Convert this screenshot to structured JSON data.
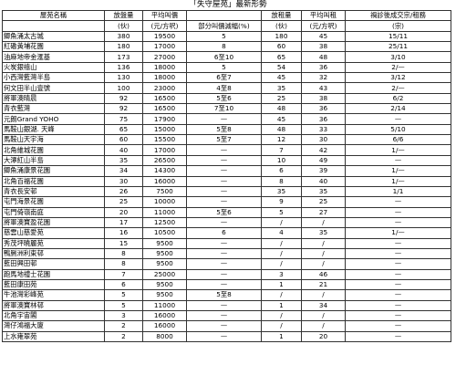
{
  "title": "「失守屋苑」最新形勢",
  "headers": {
    "name": [
      "屋苑名稱",
      ""
    ],
    "units": [
      "放盤量",
      "(伙)"
    ],
    "avg_price": [
      "平均叫價",
      "(元/方呎)"
    ],
    "cut": [
      "",
      "部分叫價減幅(%)"
    ],
    "rent_units": [
      "放租量",
      "(伙)"
    ],
    "avg_rent": [
      "平均叫租",
      "(元/方呎)"
    ],
    "ratio": [
      "禍診後成交宗/租務",
      "(宗)"
    ]
  },
  "rows": [
    {
      "name": "鯽魚涌太古城",
      "units": "380",
      "avg_price": "19500",
      "cut": "5",
      "rent_units": "180",
      "avg_rent": "45",
      "ratio": "15/11"
    },
    {
      "name": "紅磡黃埔花園",
      "units": "180",
      "avg_price": "17000",
      "cut": "8",
      "rent_units": "60",
      "avg_rent": "38",
      "ratio": "25/11"
    },
    {
      "name": "油麻地帝金滙基",
      "units": "173",
      "avg_price": "27000",
      "cut": "6至10",
      "rent_units": "65",
      "avg_rent": "48",
      "ratio": "3/10"
    },
    {
      "name": "火炭銀禧山",
      "units": "136",
      "avg_price": "18000",
      "cut": "5",
      "rent_units": "54",
      "avg_rent": "36",
      "ratio": "2/—"
    },
    {
      "name": "小西灣藍灣半島",
      "units": "130",
      "avg_price": "18000",
      "cut": "6至7",
      "rent_units": "45",
      "avg_rent": "32",
      "ratio": "3/12"
    },
    {
      "name": "何文田半山壹號",
      "units": "100",
      "avg_price": "23000",
      "cut": "4至8",
      "rent_units": "35",
      "avg_rent": "43",
      "ratio": "2/—"
    },
    {
      "name": "將軍澳晴晨",
      "units": "92",
      "avg_price": "16500",
      "cut": "5至6",
      "rent_units": "25",
      "avg_rent": "38",
      "ratio": "6/2"
    },
    {
      "name": "青衣藍灣",
      "units": "92",
      "avg_price": "16500",
      "cut": "7至10",
      "rent_units": "48",
      "avg_rent": "36",
      "ratio": "2/14"
    },
    {
      "name": "元朗Grand YOHO",
      "units": "75",
      "avg_price": "17900",
      "cut": "—",
      "rent_units": "45",
      "avg_rent": "36",
      "ratio": "—"
    },
    {
      "name": "馬鞍山銀湖. 天峰",
      "units": "65",
      "avg_price": "15000",
      "cut": "5至8",
      "rent_units": "48",
      "avg_rent": "33",
      "ratio": "5/10"
    },
    {
      "name": "馬鞍山天宇海",
      "units": "60",
      "avg_price": "15500",
      "cut": "5至7",
      "rent_units": "12",
      "avg_rent": "30",
      "ratio": "6/6"
    },
    {
      "name": "北角維城花園",
      "units": "40",
      "avg_price": "17000",
      "cut": "—",
      "rent_units": "7",
      "avg_rent": "42",
      "ratio": "1/—"
    },
    {
      "name": "大潭紅山半島",
      "units": "35",
      "avg_price": "26500",
      "cut": "—",
      "rent_units": "10",
      "avg_rent": "49",
      "ratio": "—"
    },
    {
      "name": "鯽魚涌康景花園",
      "units": "34",
      "avg_price": "14300",
      "cut": "—",
      "rent_units": "6",
      "avg_rent": "39",
      "ratio": "1/—"
    },
    {
      "name": "北角百福花園",
      "units": "30",
      "avg_price": "16000",
      "cut": "—",
      "rent_units": "8",
      "avg_rent": "40",
      "ratio": "1/—"
    },
    {
      "name": "青衣長安邨",
      "units": "26",
      "avg_price": "7500",
      "cut": "—",
      "rent_units": "35",
      "avg_rent": "35",
      "ratio": "1/1"
    },
    {
      "name": "屯門海景花園",
      "units": "25",
      "avg_price": "10000",
      "cut": "—",
      "rent_units": "9",
      "avg_rent": "25",
      "ratio": "—"
    },
    {
      "name": "屯門倚嶺南庭",
      "units": "20",
      "avg_price": "11000",
      "cut": "5至6",
      "rent_units": "5",
      "avg_rent": "27",
      "ratio": "—"
    },
    {
      "name": "將軍澳寶盈花園",
      "units": "17",
      "avg_price": "12500",
      "cut": "—",
      "rent_units": "/",
      "avg_rent": "/",
      "ratio": "—"
    },
    {
      "name": "慈雲山慈愛苑",
      "units": "16",
      "avg_price": "10500",
      "cut": "6",
      "rent_units": "4",
      "avg_rent": "35",
      "ratio": "1/—"
    },
    {
      "name": "秀茂坪曉麗苑",
      "units": "15",
      "avg_price": "9500",
      "cut": "—",
      "rent_units": "/",
      "avg_rent": "/",
      "ratio": "—"
    },
    {
      "name": "鴨脷洲利東邨",
      "units": "8",
      "avg_price": "9500",
      "cut": "—",
      "rent_units": "/",
      "avg_rent": "/",
      "ratio": "—"
    },
    {
      "name": "藍田興田邨",
      "units": "8",
      "avg_price": "9500",
      "cut": "—",
      "rent_units": "/",
      "avg_rent": "/",
      "ratio": "—"
    },
    {
      "name": "跑馬地禮士花園",
      "units": "7",
      "avg_price": "25000",
      "cut": "—",
      "rent_units": "3",
      "avg_rent": "46",
      "ratio": "—"
    },
    {
      "name": "藍田康田苑",
      "units": "6",
      "avg_price": "9500",
      "cut": "—",
      "rent_units": "1",
      "avg_rent": "21",
      "ratio": "—"
    },
    {
      "name": "牛池灣彩峰苑",
      "units": "5",
      "avg_price": "9500",
      "cut": "5至8",
      "rent_units": "/",
      "avg_rent": "/",
      "ratio": "—"
    },
    {
      "name": "將軍澳寶林邨",
      "units": "5",
      "avg_price": "11000",
      "cut": "—",
      "rent_units": "1",
      "avg_rent": "34",
      "ratio": "—"
    },
    {
      "name": "北角宇宙閣",
      "units": "3",
      "avg_price": "16000",
      "cut": "—",
      "rent_units": "/",
      "avg_rent": "/",
      "ratio": "—"
    },
    {
      "name": "灣仔鴻福大廈",
      "units": "2",
      "avg_price": "16000",
      "cut": "—",
      "rent_units": "/",
      "avg_rent": "/",
      "ratio": "—"
    },
    {
      "name": "上水雍翠苑",
      "units": "2",
      "avg_price": "8000",
      "cut": "—",
      "rent_units": "1",
      "avg_rent": "20",
      "ratio": "—"
    }
  ]
}
